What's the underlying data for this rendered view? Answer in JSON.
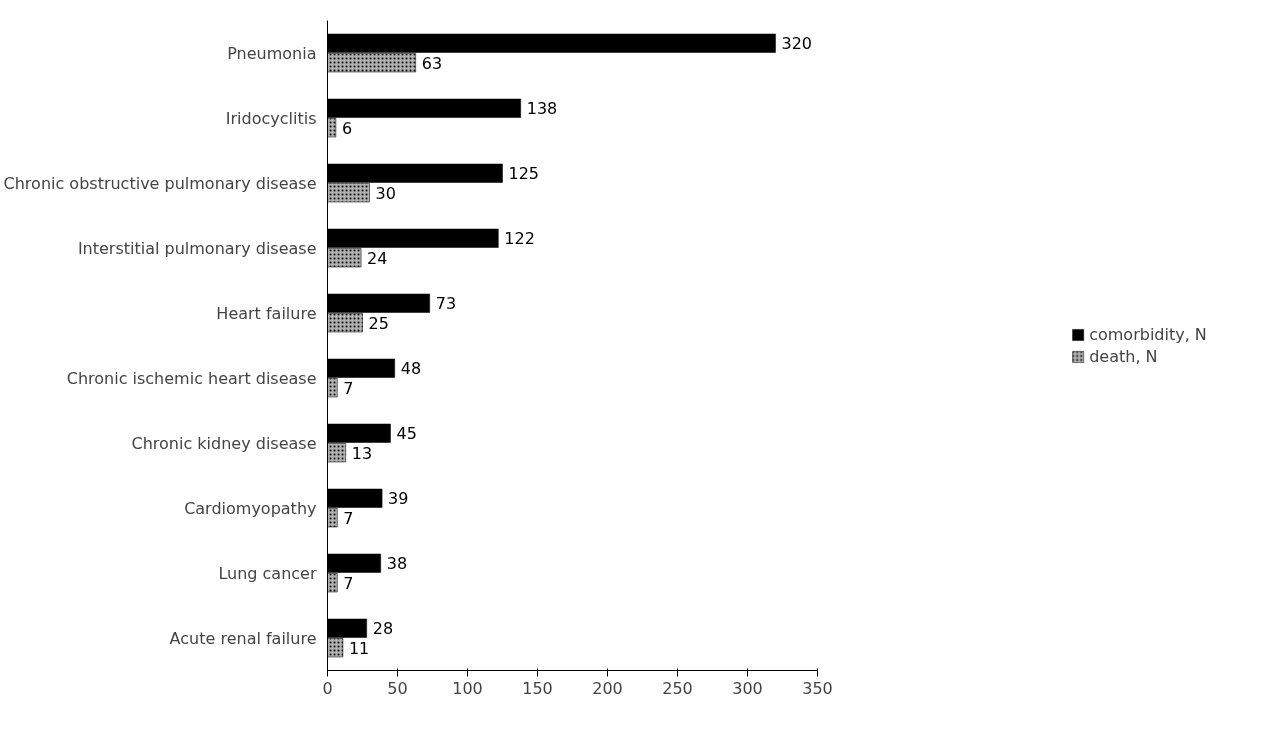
{
  "chart_data": {
    "type": "bar",
    "orientation": "horizontal",
    "categories": [
      "Pneumonia",
      "Iridocyclitis",
      "Chronic obstructive pulmonary disease",
      "Interstitial pulmonary disease",
      "Heart failure",
      "Chronic ischemic heart disease",
      "Chronic kidney disease",
      "Cardiomyopathy",
      "Lung cancer",
      "Acute renal failure"
    ],
    "series": [
      {
        "name": "comorbidity, N",
        "color": "#000000",
        "values": [
          320,
          138,
          125,
          122,
          73,
          48,
          45,
          39,
          38,
          28
        ]
      },
      {
        "name": "death, N",
        "color": "#b0b0b0",
        "values": [
          63,
          6,
          30,
          24,
          25,
          7,
          13,
          7,
          7,
          11
        ]
      }
    ],
    "xlim": [
      0,
      350
    ],
    "xticks": [
      0,
      50,
      100,
      150,
      200,
      250,
      300,
      350
    ],
    "data_labels": true,
    "grid": false,
    "legend": "right"
  }
}
